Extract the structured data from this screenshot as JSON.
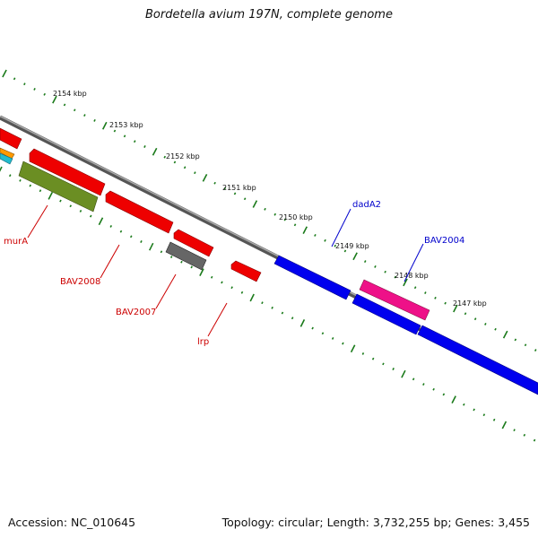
{
  "title": "Bordetella avium 197N, complete genome",
  "footer": {
    "accession": "Accession: NC_010645",
    "summary": "Topology: circular; Length: 3,732,255 bp; Genes: 3,455"
  },
  "colors": {
    "backbone": "#888888",
    "tick": "#1a7a1a",
    "forward_gene": "#0000ee",
    "reverse_gene": "#ee0000",
    "label_forward": "#0000cc",
    "label_reverse": "#cc0000"
  },
  "scale_labels": [
    "2154 kbp",
    "2153 kbp",
    "2152 kbp",
    "2151 kbp",
    "2150 kbp",
    "2149 kbp",
    "2148 kbp",
    "2147 kbp"
  ],
  "gene_labels": [
    {
      "text": "dadA2",
      "strand": "forward"
    },
    {
      "text": "BAV2004",
      "strand": "forward"
    },
    {
      "text": "murA",
      "strand": "reverse"
    },
    {
      "text": "BAV2008",
      "strand": "reverse"
    },
    {
      "text": "BAV2007",
      "strand": "reverse"
    },
    {
      "text": "lrp",
      "strand": "reverse"
    }
  ]
}
